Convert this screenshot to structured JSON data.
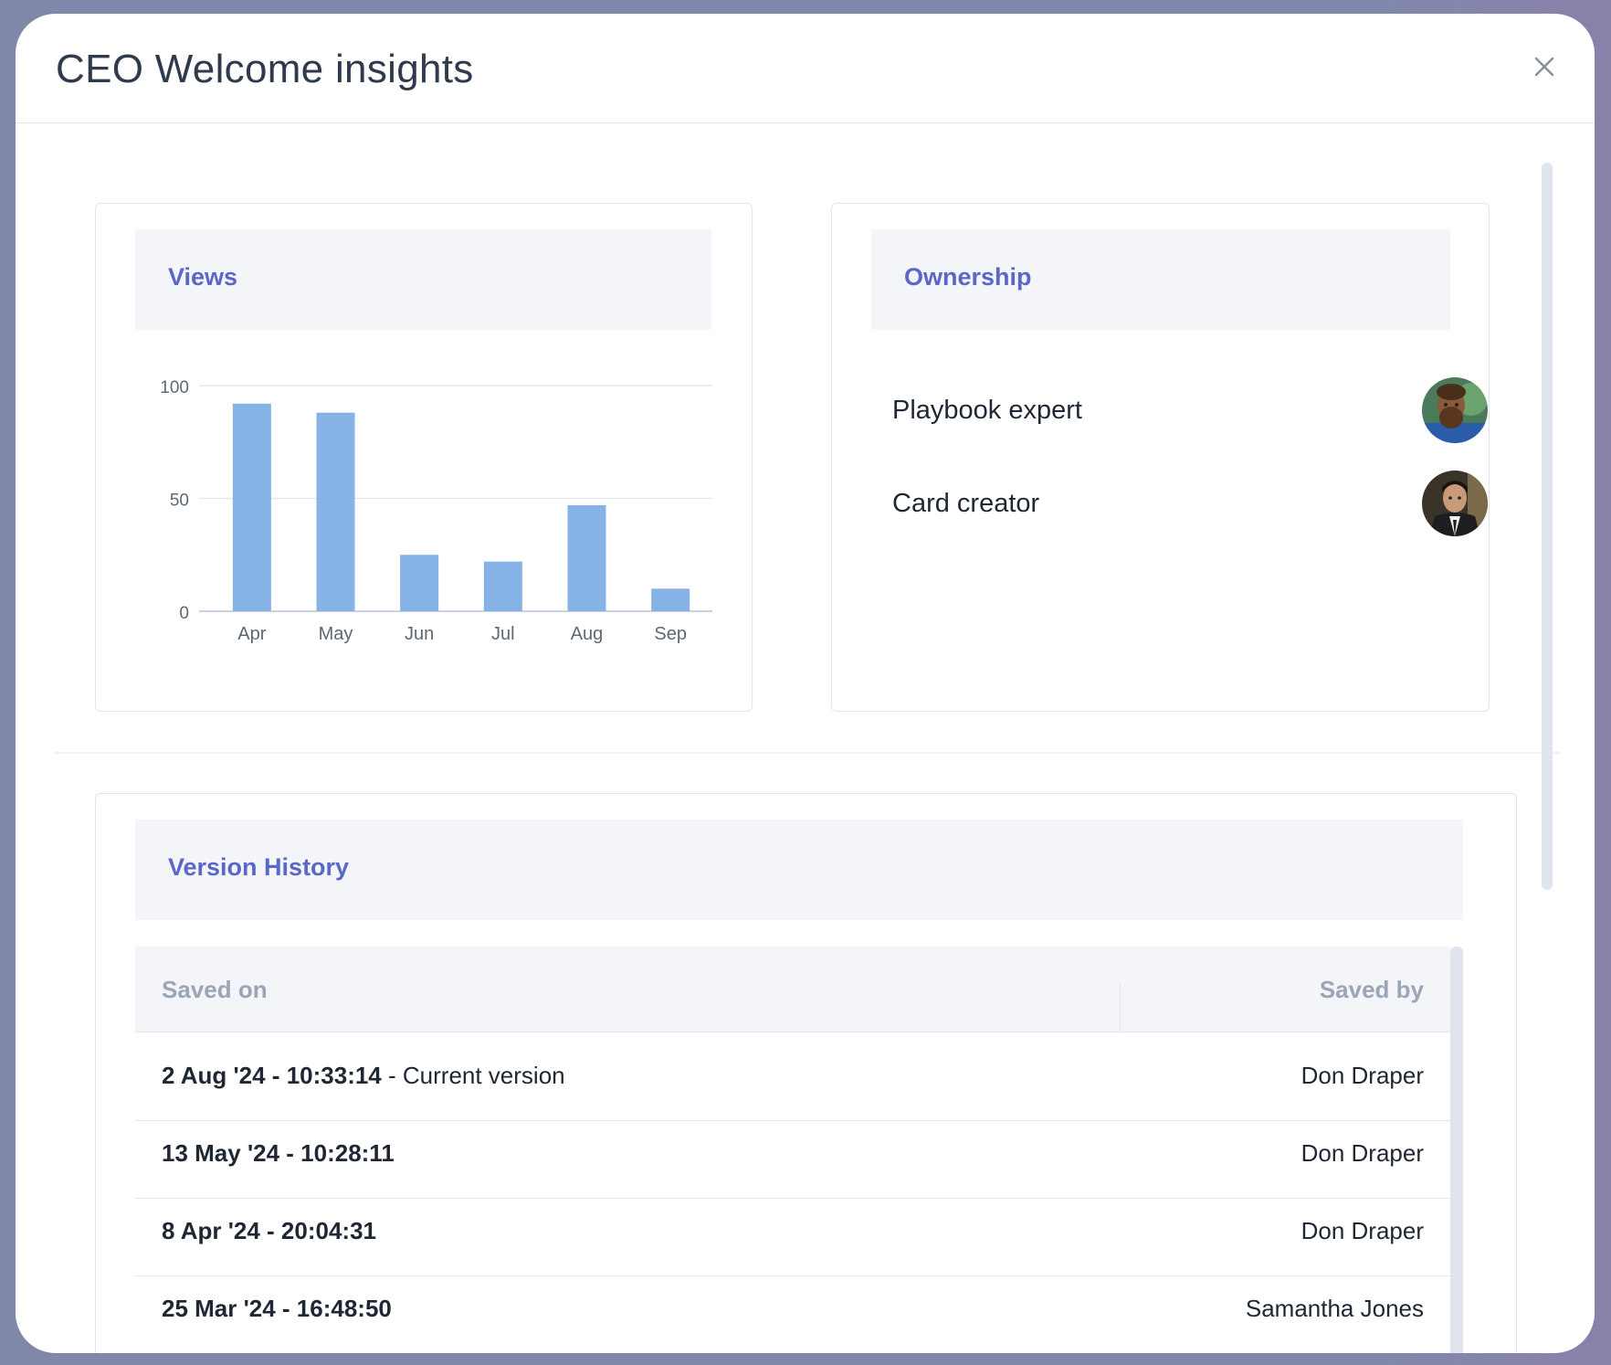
{
  "modal": {
    "title": "CEO Welcome insights",
    "close_icon": "close-icon"
  },
  "views": {
    "title": "Views",
    "chart_data": {
      "type": "bar",
      "categories": [
        "Apr",
        "May",
        "Jun",
        "Jul",
        "Aug",
        "Sep"
      ],
      "values": [
        92,
        88,
        25,
        22,
        47,
        10
      ],
      "yticks": [
        "0",
        "50",
        "100"
      ],
      "ylim": [
        0,
        100
      ],
      "grid": true,
      "bar_color": "#87b2e6"
    }
  },
  "ownership": {
    "title": "Ownership",
    "rows": [
      {
        "label": "Playbook expert"
      },
      {
        "label": "Card creator"
      }
    ]
  },
  "version_history": {
    "title": "Version History",
    "columns": {
      "saved_on": "Saved on",
      "saved_by": "Saved by"
    },
    "rows": [
      {
        "date": "2 Aug '24 - 10:33:14",
        "suffix": " - Current version",
        "by": "Don Draper"
      },
      {
        "date": "13 May '24 - 10:28:11",
        "suffix": "",
        "by": "Don Draper"
      },
      {
        "date": "8 Apr '24 - 20:04:31",
        "suffix": "",
        "by": "Don Draper"
      },
      {
        "date": "25 Mar '24 - 16:48:50",
        "suffix": "",
        "by": "Samantha Jones"
      }
    ]
  },
  "colors": {
    "accent": "#5a67c9",
    "header_bg": "#f4f5f9",
    "bar": "#87b2e6"
  }
}
